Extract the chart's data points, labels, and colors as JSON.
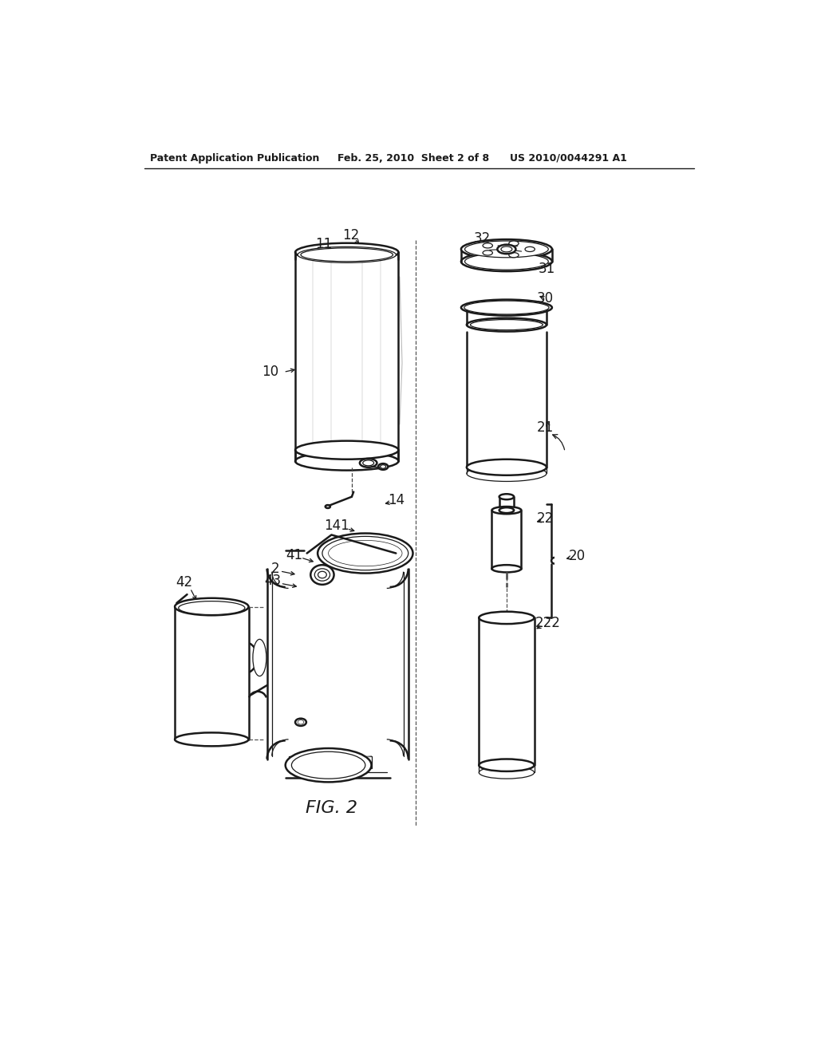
{
  "bg_color": "#ffffff",
  "line_color": "#1a1a1a",
  "header_left": "Patent Application Publication",
  "header_mid": "Feb. 25, 2010  Sheet 2 of 8",
  "header_right": "US 2010/0044291 A1",
  "fig_label": "FIG. 2",
  "lw_main": 1.8,
  "lw_thin": 0.9,
  "lw_hair": 0.5
}
